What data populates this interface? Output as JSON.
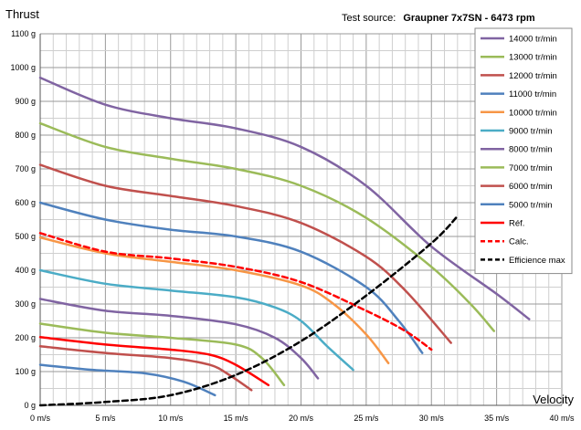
{
  "header": {
    "ylabel": "Thrust",
    "source_label": "Test source:",
    "source_value": "Graupner 7x7SN - 6473  rpm"
  },
  "chart_data": {
    "type": "line",
    "xlabel": "Velocity",
    "ylabel": "Thrust",
    "xlim": [
      0,
      40
    ],
    "ylim": [
      0,
      1100
    ],
    "x_ticks": [
      "0 m/s",
      "5 m/s",
      "10 m/s",
      "15 m/s",
      "20 m/s",
      "25 m/s",
      "30 m/s",
      "35 m/s",
      "40 m/s"
    ],
    "y_ticks": [
      "0 g",
      "100 g",
      "200 g",
      "300 g",
      "400 g",
      "500 g",
      "600 g",
      "700 g",
      "800 g",
      "900 g",
      "1000 g",
      "1100 g"
    ],
    "grid": true,
    "legend_position": "top-right",
    "series": [
      {
        "name": "14000 tr/min",
        "color": "#8064a2",
        "dash": "solid",
        "points": [
          [
            0,
            970
          ],
          [
            5,
            890
          ],
          [
            10,
            850
          ],
          [
            15,
            820
          ],
          [
            20,
            765
          ],
          [
            25,
            650
          ],
          [
            30,
            470
          ],
          [
            35,
            330
          ],
          [
            37.5,
            255
          ]
        ]
      },
      {
        "name": "13000 tr/min",
        "color": "#9bbb59",
        "dash": "solid",
        "points": [
          [
            0,
            835
          ],
          [
            5,
            765
          ],
          [
            10,
            730
          ],
          [
            15,
            700
          ],
          [
            20,
            650
          ],
          [
            25,
            555
          ],
          [
            30,
            410
          ],
          [
            33,
            300
          ],
          [
            34.8,
            220
          ]
        ]
      },
      {
        "name": "12000 tr/min",
        "color": "#c0504d",
        "dash": "solid",
        "points": [
          [
            0,
            712
          ],
          [
            5,
            650
          ],
          [
            10,
            620
          ],
          [
            15,
            590
          ],
          [
            20,
            540
          ],
          [
            25,
            440
          ],
          [
            28,
            340
          ],
          [
            31.5,
            185
          ]
        ]
      },
      {
        "name": "11000 tr/min",
        "color": "#4f81bd",
        "dash": "solid",
        "points": [
          [
            0,
            600
          ],
          [
            5,
            550
          ],
          [
            10,
            520
          ],
          [
            15,
            500
          ],
          [
            20,
            455
          ],
          [
            25,
            350
          ],
          [
            27.5,
            250
          ],
          [
            29.3,
            155
          ]
        ]
      },
      {
        "name": "10000 tr/min",
        "color": "#f79646",
        "dash": "solid",
        "points": [
          [
            0,
            497
          ],
          [
            5,
            450
          ],
          [
            10,
            425
          ],
          [
            15,
            400
          ],
          [
            20,
            355
          ],
          [
            22.5,
            300
          ],
          [
            25,
            210
          ],
          [
            26.7,
            125
          ]
        ]
      },
      {
        "name": "9000 tr/min",
        "color": "#4bacc6",
        "dash": "solid",
        "points": [
          [
            0,
            400
          ],
          [
            5,
            360
          ],
          [
            10,
            340
          ],
          [
            15,
            320
          ],
          [
            18,
            290
          ],
          [
            20,
            250
          ],
          [
            22,
            175
          ],
          [
            24,
            105
          ]
        ]
      },
      {
        "name": "8000 tr/min",
        "color": "#8064a2",
        "dash": "solid",
        "points": [
          [
            0,
            315
          ],
          [
            5,
            280
          ],
          [
            10,
            265
          ],
          [
            15,
            240
          ],
          [
            18,
            200
          ],
          [
            20,
            140
          ],
          [
            21.3,
            80
          ]
        ]
      },
      {
        "name": "7000 tr/min",
        "color": "#9bbb59",
        "dash": "solid",
        "points": [
          [
            0,
            242
          ],
          [
            5,
            215
          ],
          [
            10,
            200
          ],
          [
            15,
            180
          ],
          [
            17,
            140
          ],
          [
            18.7,
            60
          ]
        ]
      },
      {
        "name": "6000 tr/min",
        "color": "#c0504d",
        "dash": "solid",
        "points": [
          [
            0,
            175
          ],
          [
            5,
            155
          ],
          [
            10,
            140
          ],
          [
            13,
            120
          ],
          [
            14.5,
            90
          ],
          [
            16.2,
            45
          ]
        ]
      },
      {
        "name": "5000 tr/min",
        "color": "#4f81bd",
        "dash": "solid",
        "points": [
          [
            0,
            120
          ],
          [
            4,
            105
          ],
          [
            8,
            95
          ],
          [
            11,
            70
          ],
          [
            13.4,
            30
          ]
        ]
      },
      {
        "name": "Réf.",
        "color": "#ff0000",
        "dash": "solid",
        "points": [
          [
            0,
            202
          ],
          [
            5,
            180
          ],
          [
            10,
            165
          ],
          [
            13,
            150
          ],
          [
            15,
            120
          ],
          [
            17.5,
            60
          ]
        ]
      },
      {
        "name": "Calc.",
        "color": "#ff0000",
        "dash": "dashed",
        "points": [
          [
            0,
            510
          ],
          [
            5,
            455
          ],
          [
            10,
            435
          ],
          [
            15,
            410
          ],
          [
            20,
            365
          ],
          [
            25,
            280
          ],
          [
            28,
            220
          ],
          [
            30,
            165
          ]
        ]
      },
      {
        "name": "Efficience max",
        "color": "#000000",
        "dash": "dashed",
        "points": [
          [
            0,
            0
          ],
          [
            5,
            10
          ],
          [
            10,
            30
          ],
          [
            15,
            90
          ],
          [
            20,
            190
          ],
          [
            25,
            325
          ],
          [
            30,
            480
          ],
          [
            32,
            560
          ]
        ]
      }
    ]
  }
}
